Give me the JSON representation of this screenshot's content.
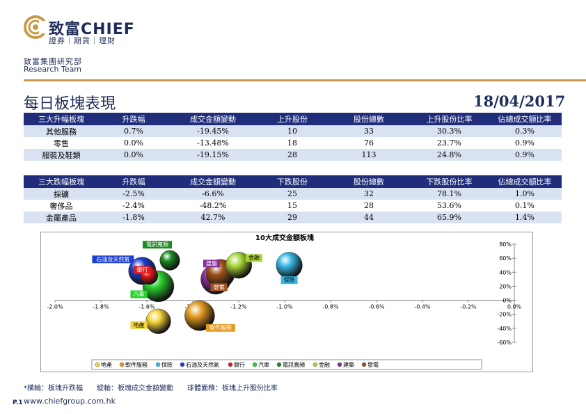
{
  "header": {
    "brand_name": "致富CHIEF",
    "brand_sub": "證券｜期貨｜理財",
    "dept_cn": "致富集團研究部",
    "dept_en": "Research Team",
    "title": "每日板塊表現",
    "date": "18/04/2017"
  },
  "colors": {
    "navy": "#1f2d7a",
    "gold": "#c89a4b",
    "band": "#d8e2f1"
  },
  "table_up": {
    "headers": [
      "三大升幅板塊",
      "升跌幅",
      "成交金額變動",
      "上升股份",
      "股份總數",
      "上升股份比率",
      "佔總成交額比率"
    ],
    "rows": [
      [
        "其他服務",
        "0.7%",
        "-19.45%",
        "10",
        "33",
        "30.3%",
        "0.3%"
      ],
      [
        "零售",
        "0.0%",
        "-13.48%",
        "18",
        "76",
        "23.7%",
        "0.9%"
      ],
      [
        "服裝及鞋類",
        "0.0%",
        "-19.15%",
        "28",
        "113",
        "24.8%",
        "0.9%"
      ]
    ]
  },
  "table_down": {
    "headers": [
      "三大跌幅板塊",
      "升跌幅",
      "成交金額變動",
      "下跌股份",
      "股份總數",
      "下跌股份比率",
      "佔總成交額比率"
    ],
    "rows": [
      [
        "採礦",
        "-2.5%",
        "-6.6%",
        "25",
        "32",
        "78.1%",
        "1.0%"
      ],
      [
        "奢侈品",
        "-2.4%",
        "-48.2%",
        "15",
        "28",
        "53.6%",
        "0.1%"
      ],
      [
        "金屬產品",
        "-1.8%",
        "42.7%",
        "29",
        "44",
        "65.9%",
        "1.4%"
      ]
    ]
  },
  "chart_data": {
    "type": "scatter",
    "title": "10大成交金額板塊",
    "xlim": [
      -2.0,
      0.0
    ],
    "ylim": [
      -60,
      80
    ],
    "x_ticks": [
      "-2.0%",
      "-1.8%",
      "-1.6%",
      "-1.4%",
      "-1.2%",
      "-1.0%",
      "-0.8%",
      "-0.6%",
      "-0.4%",
      "-0.2%",
      "0.0%"
    ],
    "y_ticks": [
      "-60%",
      "-40%",
      "-20%",
      "0%",
      "20%",
      "40%",
      "60%",
      "80%"
    ],
    "legend_position": "bottom",
    "series": [
      {
        "name": "地產",
        "x": -1.55,
        "y": -30,
        "size": 0.55,
        "color": "#f2d33c"
      },
      {
        "name": "軟件服務",
        "x": -1.37,
        "y": -22,
        "size": 0.75,
        "color": "#e39a1f"
      },
      {
        "name": "保險",
        "x": -0.98,
        "y": 50,
        "size": 0.6,
        "color": "#39b7e6"
      },
      {
        "name": "石油及天然氣",
        "x": -1.62,
        "y": 42,
        "size": 0.65,
        "color": "#1d3fd0"
      },
      {
        "name": "銀行",
        "x": -1.59,
        "y": 35,
        "size": 0.25,
        "color": "#e6191b"
      },
      {
        "name": "汽車",
        "x": -1.55,
        "y": 20,
        "size": 0.8,
        "color": "#2ad12e"
      },
      {
        "name": "電訊寬頻",
        "x": -1.5,
        "y": 57,
        "size": 0.35,
        "color": "#1c8a22"
      },
      {
        "name": "金融",
        "x": -1.2,
        "y": 50,
        "size": 0.6,
        "color": "#a7d63a"
      },
      {
        "name": "建築",
        "x": -1.3,
        "y": 30,
        "size": 0.75,
        "color": "#8a2f9a"
      },
      {
        "name": "發電",
        "x": -1.28,
        "y": 38,
        "size": 0.7,
        "color": "#a0521c"
      }
    ]
  },
  "footnote": "*橫軸：板塊升跌幅　　縱軸：板塊成交金額變動　　球體面積：板塊上升股份比率",
  "page_no": "P.1",
  "website": "www.chiefgroup.com.hk"
}
